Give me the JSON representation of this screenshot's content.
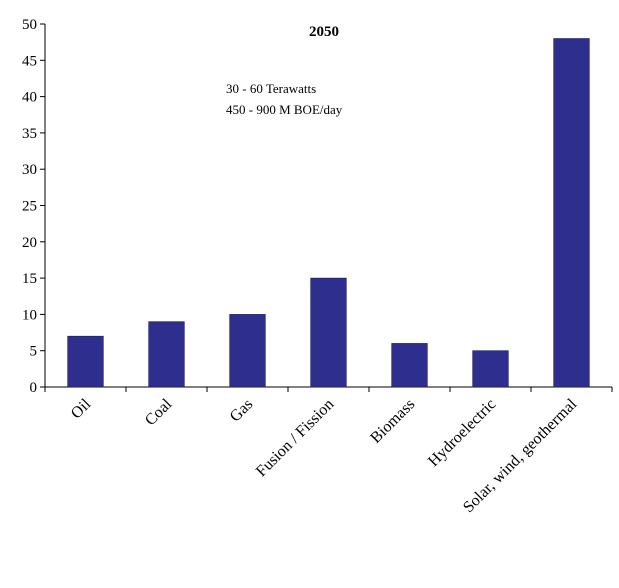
{
  "chart_data": {
    "type": "bar",
    "title": "2050",
    "annotations": [
      "30 - 60 Terawatts",
      "450 - 900 M BOE/day"
    ],
    "xlabel": "",
    "ylabel": "",
    "categories": [
      "Oil",
      "Coal",
      "Gas",
      "Fusion / Fission",
      "Biomass",
      "Hydroelectric",
      "Solar, wind, geothermal"
    ],
    "values": [
      7,
      9,
      10,
      15,
      6,
      5,
      48
    ],
    "ylim": [
      0,
      50
    ],
    "yticks": [
      0,
      5,
      10,
      15,
      20,
      25,
      30,
      35,
      40,
      45,
      50
    ],
    "bar_color": "#2e2e8e",
    "grid": false,
    "legend": "none"
  }
}
